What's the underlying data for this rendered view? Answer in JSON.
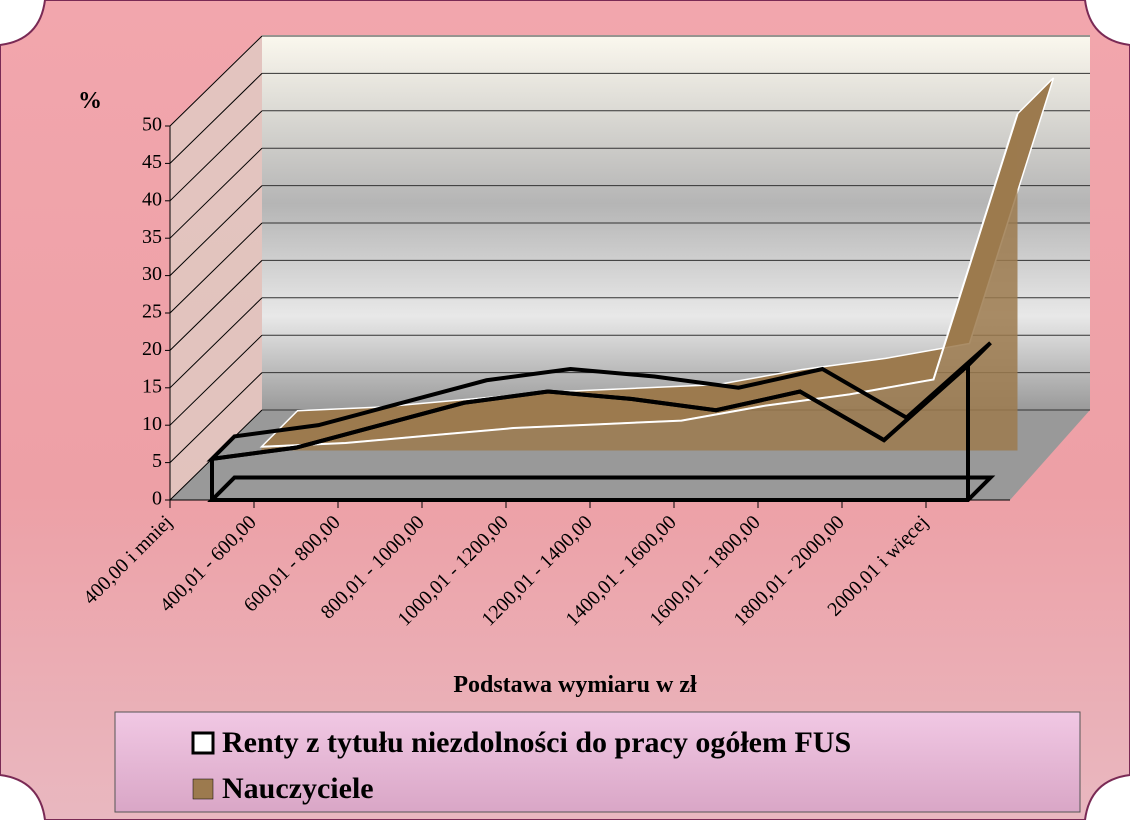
{
  "chart_data": {
    "type": "line3d",
    "y_label": "%",
    "x_label": "Podstawa wymiaru w zł",
    "categories": [
      "400,00 i mniej",
      "400,01 - 600,00",
      "600,01 - 800,00",
      "800,01 - 1000,00",
      "1000,01 - 1200,00",
      "1200,01 - 1400,00",
      "1400,01 - 1600,00",
      "1600,01 - 1800,00",
      "1800,01 - 2000,00",
      "2000,01 i więcej"
    ],
    "series": [
      {
        "name": "Renty z tytułu niezdolności do pracy ogółem  FUS",
        "color": "#ffffff",
        "values": [
          5.5,
          7,
          10,
          13,
          14.5,
          13.5,
          12,
          14.5,
          8,
          18
        ]
      },
      {
        "name": "Nauczyciele",
        "color": "#9c7a4e",
        "values": [
          0.5,
          1,
          2,
          3,
          3.5,
          4,
          6,
          7.5,
          9.5,
          45
        ]
      }
    ],
    "ylim": [
      0,
      50
    ],
    "yticks": [
      0,
      5,
      10,
      15,
      20,
      25,
      30,
      35,
      40,
      45,
      50
    ],
    "grid": true
  }
}
